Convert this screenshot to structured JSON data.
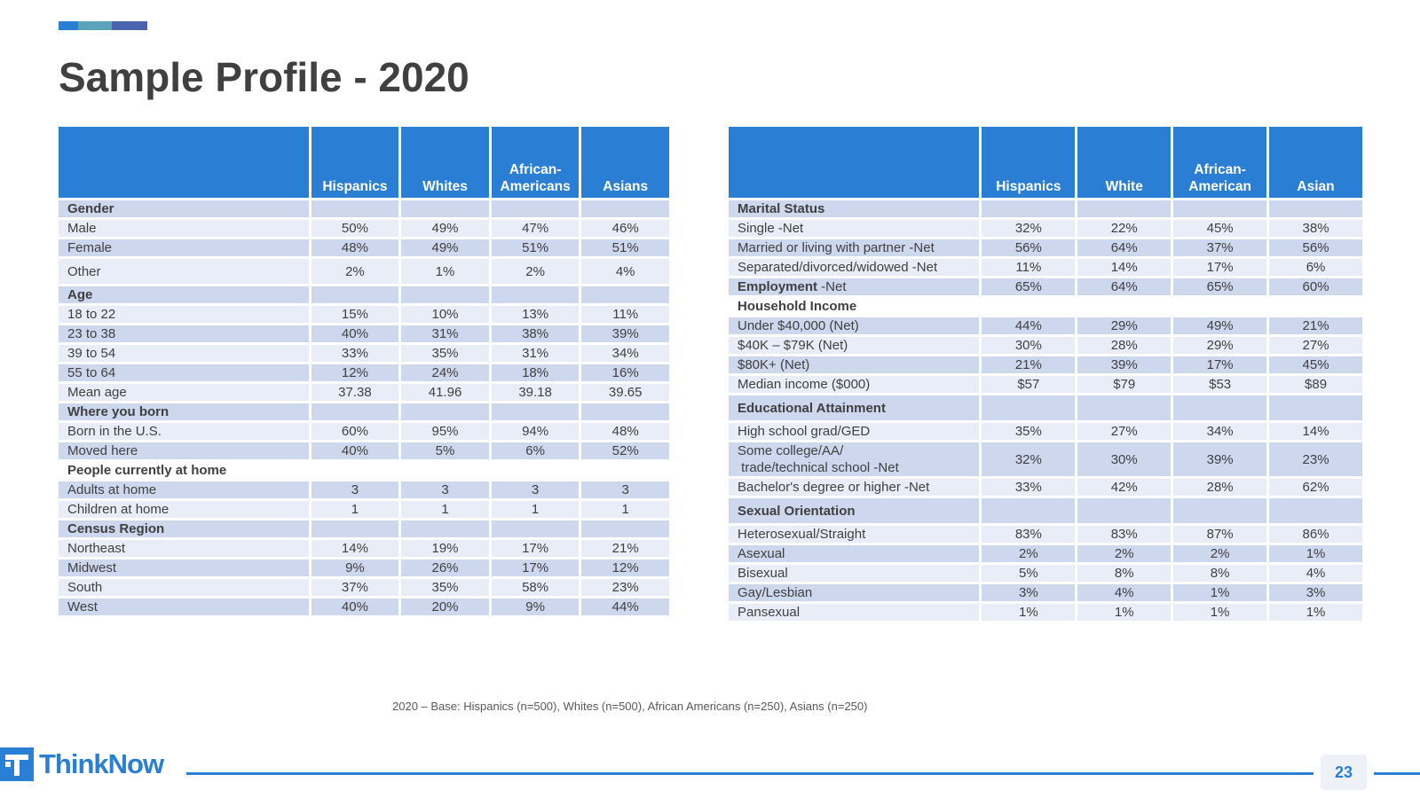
{
  "title": "Sample Profile - 2020",
  "colors": {
    "accent": "#2a7fd4",
    "accent_teal": "#5ba3b8",
    "accent_indigo": "#4a64b0",
    "row_dark": "#cdd7ee",
    "row_light": "#e9edf7"
  },
  "left_table": {
    "headers": [
      "",
      "Hispanics",
      "Whites",
      "African-\nAmericans",
      "Asians"
    ],
    "rows": [
      {
        "type": "section",
        "label": "Gender",
        "values": [
          "",
          "",
          "",
          ""
        ]
      },
      {
        "type": "light",
        "label": "Male",
        "values": [
          "50%",
          "49%",
          "47%",
          "46%"
        ]
      },
      {
        "type": "dark",
        "label": "Female",
        "values": [
          "48%",
          "49%",
          "51%",
          "51%"
        ]
      },
      {
        "type": "light",
        "label": "Other",
        "values": [
          "2%",
          "1%",
          "2%",
          "4%"
        ],
        "tall": true
      },
      {
        "type": "section",
        "label": "Age",
        "values": [
          "",
          "",
          "",
          ""
        ]
      },
      {
        "type": "light",
        "label": "18 to 22",
        "values": [
          "15%",
          "10%",
          "13%",
          "11%"
        ]
      },
      {
        "type": "dark",
        "label": "23 to 38",
        "values": [
          "40%",
          "31%",
          "38%",
          "39%"
        ]
      },
      {
        "type": "light",
        "label": "39 to 54",
        "values": [
          "33%",
          "35%",
          "31%",
          "34%"
        ]
      },
      {
        "type": "dark",
        "label": "55 to 64",
        "values": [
          "12%",
          "24%",
          "18%",
          "16%"
        ]
      },
      {
        "type": "light",
        "label": "Mean age",
        "values": [
          "37.38",
          "41.96",
          "39.18",
          "39.65"
        ]
      },
      {
        "type": "section",
        "label": "Where you born",
        "values": [
          "",
          "",
          "",
          ""
        ]
      },
      {
        "type": "light",
        "label": "Born in the U.S.",
        "values": [
          "60%",
          "95%",
          "94%",
          "48%"
        ]
      },
      {
        "type": "dark",
        "label": "Moved here",
        "values": [
          "40%",
          "5%",
          "6%",
          "52%"
        ]
      },
      {
        "type": "section-white",
        "label": "People currently at home",
        "values": [
          "",
          "",
          "",
          ""
        ]
      },
      {
        "type": "dark",
        "label": "Adults at home",
        "values": [
          "3",
          "3",
          "3",
          "3"
        ]
      },
      {
        "type": "light",
        "label": "Children at home",
        "values": [
          "1",
          "1",
          "1",
          "1"
        ]
      },
      {
        "type": "section",
        "label": "Census Region",
        "values": [
          "",
          "",
          "",
          ""
        ]
      },
      {
        "type": "light",
        "label": "Northeast",
        "values": [
          "14%",
          "19%",
          "17%",
          "21%"
        ]
      },
      {
        "type": "dark",
        "label": "Midwest",
        "values": [
          "9%",
          "26%",
          "17%",
          "12%"
        ]
      },
      {
        "type": "light",
        "label": "South",
        "values": [
          "37%",
          "35%",
          "58%",
          "23%"
        ]
      },
      {
        "type": "dark",
        "label": "West",
        "values": [
          "40%",
          "20%",
          "9%",
          "44%"
        ]
      }
    ]
  },
  "right_table": {
    "headers": [
      "",
      "Hispanics",
      "White",
      "African-\nAmerican",
      "Asian"
    ],
    "rows": [
      {
        "type": "section",
        "label": "Marital Status",
        "values": [
          "",
          "",
          "",
          ""
        ]
      },
      {
        "type": "light",
        "label": "Single -Net",
        "values": [
          "32%",
          "22%",
          "45%",
          "38%"
        ]
      },
      {
        "type": "dark",
        "label": "Married or living with partner -Net",
        "values": [
          "56%",
          "64%",
          "37%",
          "56%"
        ]
      },
      {
        "type": "light",
        "label": "Separated/divorced/widowed -Net",
        "values": [
          "11%",
          "14%",
          "17%",
          "6%"
        ]
      },
      {
        "type": "dark",
        "label": "Employment",
        "label_suffix": " -Net",
        "bold_prefix": true,
        "values": [
          "65%",
          "64%",
          "65%",
          "60%"
        ]
      },
      {
        "type": "section-white",
        "label": "Household Income",
        "values": [
          "",
          "",
          "",
          ""
        ]
      },
      {
        "type": "dark",
        "label": "Under $40,000 (Net)",
        "values": [
          "44%",
          "29%",
          "49%",
          "21%"
        ]
      },
      {
        "type": "light",
        "label": "$40K – $79K (Net)",
        "values": [
          "30%",
          "28%",
          "29%",
          "27%"
        ]
      },
      {
        "type": "dark",
        "label": "$80K+ (Net)",
        "values": [
          "21%",
          "39%",
          "17%",
          "45%"
        ]
      },
      {
        "type": "light",
        "label": "Median income ($000)",
        "values": [
          "$57",
          "$79",
          "$53",
          "$89"
        ]
      },
      {
        "type": "section",
        "label": "Educational Attainment",
        "values": [
          "",
          "",
          "",
          ""
        ],
        "tall": true
      },
      {
        "type": "light",
        "label": "High school grad/GED",
        "values": [
          "35%",
          "27%",
          "34%",
          "14%"
        ]
      },
      {
        "type": "dark",
        "label": "Some college/AA/\n trade/technical school -Net",
        "values": [
          "32%",
          "30%",
          "39%",
          "23%"
        ],
        "multiline": true
      },
      {
        "type": "light",
        "label": "Bachelor's degree or higher -Net",
        "values": [
          "33%",
          "42%",
          "28%",
          "62%"
        ]
      },
      {
        "type": "section",
        "label": "Sexual Orientation",
        "values": [
          "",
          "",
          "",
          ""
        ],
        "tall": true
      },
      {
        "type": "light",
        "label": "Heterosexual/Straight",
        "values": [
          "83%",
          "83%",
          "87%",
          "86%"
        ]
      },
      {
        "type": "dark",
        "label": "Asexual",
        "values": [
          "2%",
          "2%",
          "2%",
          "1%"
        ]
      },
      {
        "type": "light",
        "label": "Bisexual",
        "values": [
          "5%",
          "8%",
          "8%",
          "4%"
        ]
      },
      {
        "type": "dark",
        "label": "Gay/Lesbian",
        "values": [
          "3%",
          "4%",
          "1%",
          "3%"
        ]
      },
      {
        "type": "light",
        "label": "Pansexual",
        "values": [
          "1%",
          "1%",
          "1%",
          "1%"
        ]
      }
    ]
  },
  "footnote": "2020 – Base: Hispanics (n=500), Whites (n=500), African Americans (n=250), Asians (n=250)",
  "logo": {
    "text": "ThinkNow"
  },
  "page_number": "23"
}
